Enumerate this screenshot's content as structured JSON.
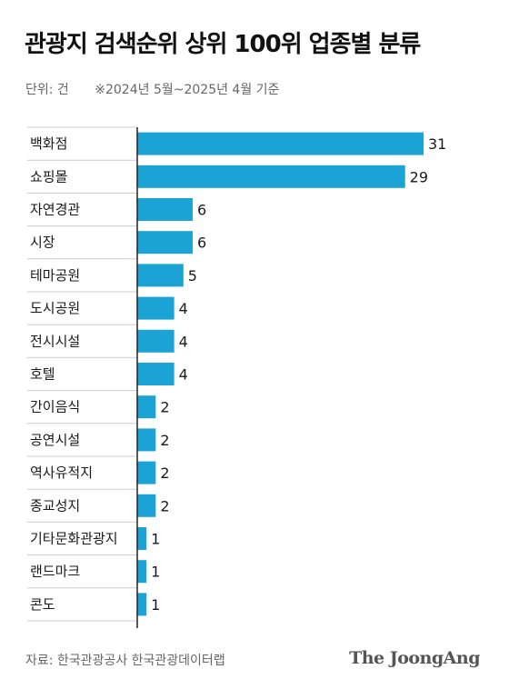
{
  "title": "관광지 검색순위 상위 100위 업종별 분류",
  "unit_label": "단위: 건",
  "period_label": "※2024년 5월~2025년 4월 기준",
  "source": "자료: 한국관광공사 한국관광데이터랩",
  "logo": "The JoongAng",
  "colors": {
    "bar": "#1aa3d4",
    "separator": "#cccccc",
    "axis": "#222222"
  },
  "chart_data": {
    "type": "bar",
    "orientation": "horizontal",
    "title": "관광지 검색순위 상위 100위 업종별 분류",
    "categories": [
      "백화점",
      "쇼핑몰",
      "자연경관",
      "시장",
      "테마공원",
      "도시공원",
      "전시시설",
      "호텔",
      "간이음식",
      "공연시설",
      "역사유적지",
      "종교성지",
      "기타문화관광지",
      "랜드마크",
      "콘도"
    ],
    "values": [
      31,
      29,
      6,
      6,
      5,
      4,
      4,
      4,
      2,
      2,
      2,
      2,
      1,
      1,
      1
    ],
    "xlim": [
      0,
      31
    ],
    "grid": false,
    "legend": "none"
  }
}
